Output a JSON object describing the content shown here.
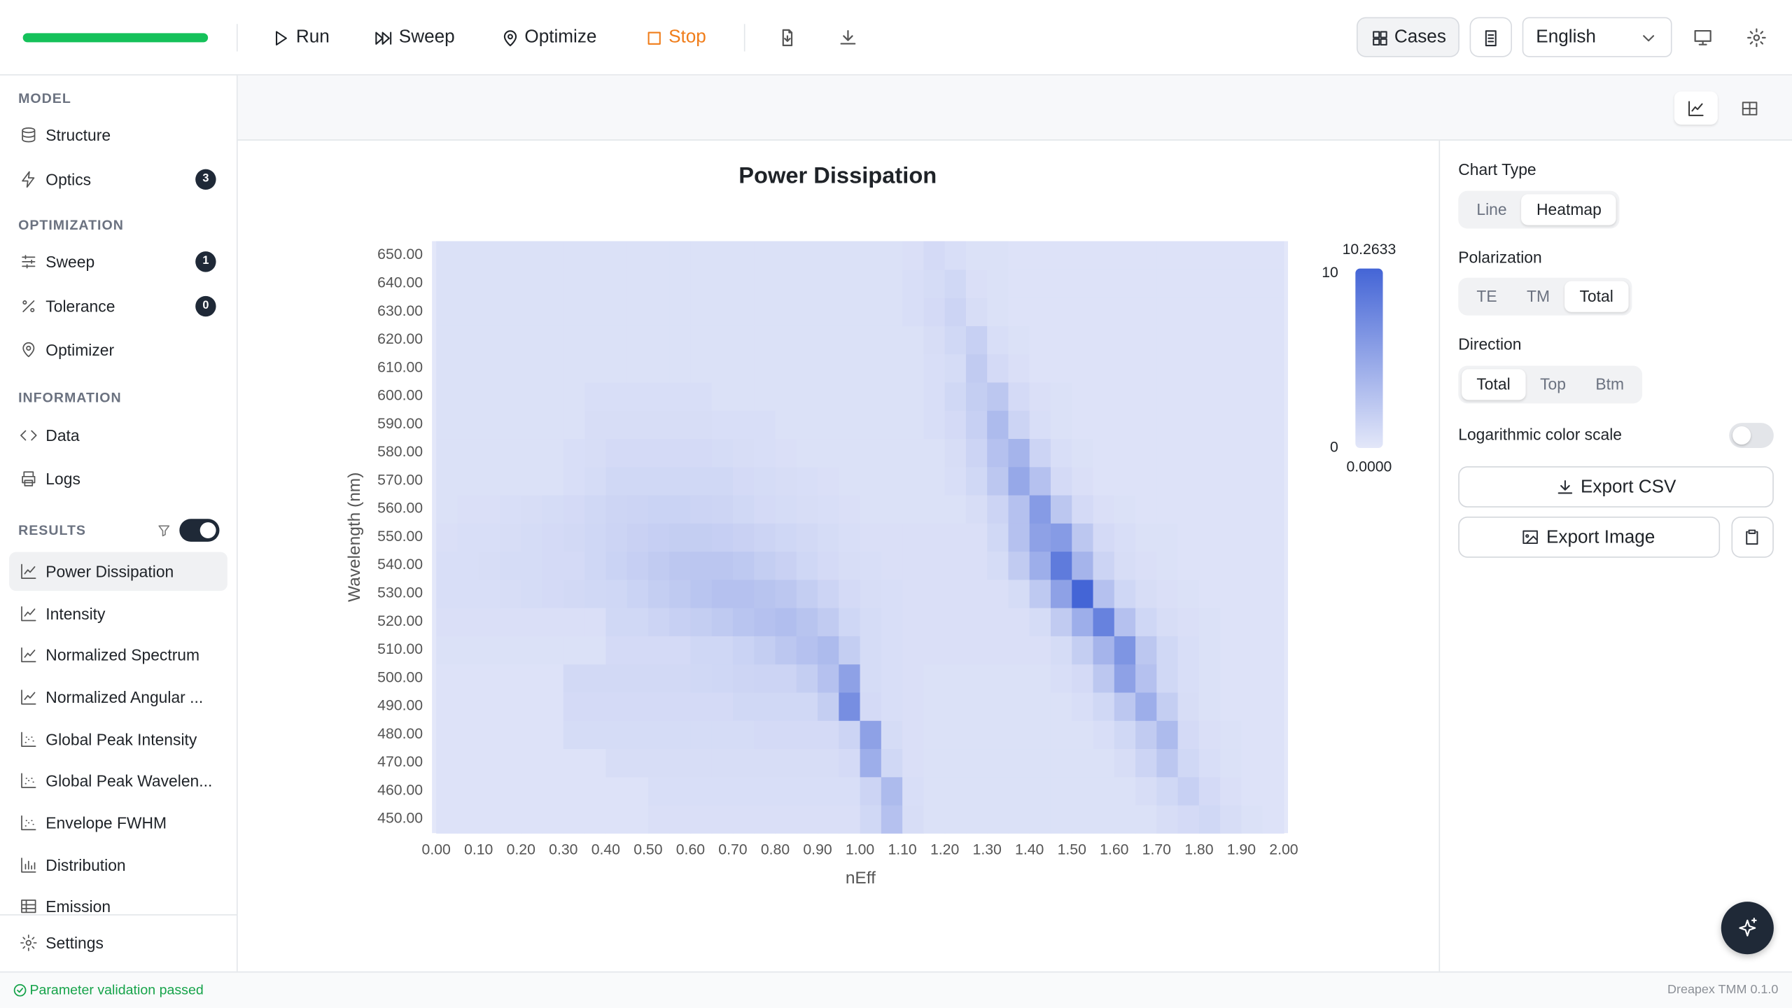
{
  "toolbar": {
    "run": "Run",
    "sweep": "Sweep",
    "optimize": "Optimize",
    "stop": "Stop",
    "cases": "Cases",
    "language": "English"
  },
  "sidebar": {
    "sections": [
      {
        "title": "MODEL",
        "items": [
          {
            "label": "Structure"
          },
          {
            "label": "Optics",
            "badge": 3
          }
        ]
      },
      {
        "title": "OPTIMIZATION",
        "items": [
          {
            "label": "Sweep",
            "badge": 1
          },
          {
            "label": "Tolerance",
            "badge": 0
          },
          {
            "label": "Optimizer"
          }
        ]
      },
      {
        "title": "INFORMATION",
        "items": [
          {
            "label": "Data"
          },
          {
            "label": "Logs"
          }
        ]
      },
      {
        "title": "RESULTS",
        "filter_enabled": true,
        "selected": 0,
        "items": [
          {
            "label": "Power Dissipation"
          },
          {
            "label": "Intensity"
          },
          {
            "label": "Normalized Spectrum"
          },
          {
            "label": "Normalized Angular ..."
          },
          {
            "label": "Global Peak Intensity"
          },
          {
            "label": "Global Peak Wavelen..."
          },
          {
            "label": "Envelope FWHM"
          },
          {
            "label": "Distribution"
          },
          {
            "label": "Emission"
          }
        ]
      }
    ],
    "settings": "Settings"
  },
  "panel": {
    "chart_type": {
      "label": "Chart Type",
      "options": [
        "Line",
        "Heatmap"
      ],
      "selected": 1
    },
    "polarization": {
      "label": "Polarization",
      "options": [
        "TE",
        "TM",
        "Total"
      ],
      "selected": 2
    },
    "direction": {
      "label": "Direction",
      "options": [
        "Total",
        "Top",
        "Btm"
      ],
      "selected": 0
    },
    "log_scale": {
      "label": "Logarithmic color scale",
      "on": false
    },
    "export_csv": "Export CSV",
    "export_image": "Export Image"
  },
  "status": {
    "message": "Parameter validation passed",
    "version": "Dreapex TMM 0.1.0"
  },
  "chart_data": {
    "type": "heatmap",
    "title": "Power Dissipation",
    "xlabel": "nEff",
    "ylabel": "Wavelength (nm)",
    "xlim": [
      -0.01,
      2.01
    ],
    "ylim": [
      445,
      655
    ],
    "xticks": [
      {
        "value": 0,
        "label": "0.00"
      },
      {
        "value": 0.1,
        "label": "0.10"
      },
      {
        "value": 0.2,
        "label": "0.20"
      },
      {
        "value": 0.3,
        "label": "0.30"
      },
      {
        "value": 0.4,
        "label": "0.40"
      },
      {
        "value": 0.5,
        "label": "0.50"
      },
      {
        "value": 0.6,
        "label": "0.60"
      },
      {
        "value": 0.7,
        "label": "0.70"
      },
      {
        "value": 0.8,
        "label": "0.80"
      },
      {
        "value": 0.9,
        "label": "0.90"
      },
      {
        "value": 1,
        "label": "1.00"
      },
      {
        "value": 1.1,
        "label": "1.10"
      },
      {
        "value": 1.2,
        "label": "1.20"
      },
      {
        "value": 1.3,
        "label": "1.30"
      },
      {
        "value": 1.4,
        "label": "1.40"
      },
      {
        "value": 1.5,
        "label": "1.50"
      },
      {
        "value": 1.6,
        "label": "1.60"
      },
      {
        "value": 1.7,
        "label": "1.70"
      },
      {
        "value": 1.8,
        "label": "1.80"
      },
      {
        "value": 1.9,
        "label": "1.90"
      },
      {
        "value": 2,
        "label": "2.00"
      }
    ],
    "yticks": [
      {
        "value": 450,
        "label": "450.00"
      },
      {
        "value": 460,
        "label": "460.00"
      },
      {
        "value": 470,
        "label": "470.00"
      },
      {
        "value": 480,
        "label": "480.00"
      },
      {
        "value": 490,
        "label": "490.00"
      },
      {
        "value": 500,
        "label": "500.00"
      },
      {
        "value": 510,
        "label": "510.00"
      },
      {
        "value": 520,
        "label": "520.00"
      },
      {
        "value": 530,
        "label": "530.00"
      },
      {
        "value": 540,
        "label": "540.00"
      },
      {
        "value": 550,
        "label": "550.00"
      },
      {
        "value": 560,
        "label": "560.00"
      },
      {
        "value": 570,
        "label": "570.00"
      },
      {
        "value": 580,
        "label": "580.00"
      },
      {
        "value": 590,
        "label": "590.00"
      },
      {
        "value": 600,
        "label": "600.00"
      },
      {
        "value": 610,
        "label": "610.00"
      },
      {
        "value": 620,
        "label": "620.00"
      },
      {
        "value": 630,
        "label": "630.00"
      },
      {
        "value": 640,
        "label": "640.00"
      },
      {
        "value": 650,
        "label": "650.00"
      }
    ],
    "xbins": [
      0,
      0.05,
      0.1,
      0.15,
      0.2,
      0.25,
      0.3,
      0.35,
      0.4,
      0.45,
      0.5,
      0.55,
      0.6,
      0.65,
      0.7,
      0.75,
      0.8,
      0.85,
      0.9,
      0.95,
      1,
      1.05,
      1.1,
      1.15,
      1.2,
      1.25,
      1.3,
      1.35,
      1.4,
      1.45,
      1.5,
      1.55,
      1.6,
      1.65,
      1.7,
      1.75,
      1.8,
      1.85,
      1.9,
      1.95,
      2
    ],
    "ybins": [
      445,
      455,
      465,
      475,
      485,
      495,
      505,
      515,
      525,
      535,
      545,
      555,
      565,
      575,
      585,
      595,
      605,
      615,
      625,
      635,
      645,
      655
    ],
    "values": [
      [
        0.4,
        0.4,
        0.4,
        0.4,
        0.4,
        0.4,
        0.4,
        0.4,
        0.4,
        0.4,
        0.6,
        0.6,
        0.6,
        0.6,
        0.6,
        0.6,
        0.6,
        0.6,
        0.6,
        0.6,
        1.2,
        3.0,
        0.8,
        0.5,
        0.5,
        0.5,
        0.5,
        0.5,
        0.5,
        0.5,
        0.5,
        0.5,
        0.5,
        0.5,
        0.8,
        1.0,
        1.2,
        0.8,
        0.5,
        0.4
      ],
      [
        0.4,
        0.4,
        0.4,
        0.4,
        0.4,
        0.4,
        0.4,
        0.4,
        0.4,
        0.4,
        0.7,
        0.7,
        0.7,
        0.7,
        0.7,
        0.7,
        0.7,
        0.7,
        0.7,
        0.7,
        1.5,
        3.5,
        0.7,
        0.5,
        0.5,
        0.5,
        0.5,
        0.5,
        0.5,
        0.5,
        0.5,
        0.5,
        0.5,
        0.8,
        1.2,
        1.8,
        1.0,
        0.6,
        0.4,
        0.4
      ],
      [
        0.4,
        0.4,
        0.4,
        0.4,
        0.4,
        0.4,
        0.4,
        0.4,
        0.8,
        0.8,
        0.8,
        0.8,
        0.8,
        0.8,
        0.8,
        0.8,
        0.8,
        0.8,
        0.8,
        1.0,
        4.5,
        1.2,
        0.6,
        0.5,
        0.5,
        0.5,
        0.5,
        0.5,
        0.5,
        0.5,
        0.5,
        0.5,
        0.8,
        1.5,
        2.5,
        1.2,
        0.7,
        0.5,
        0.4,
        0.4
      ],
      [
        0.4,
        0.4,
        0.4,
        0.4,
        0.4,
        0.4,
        0.9,
        0.9,
        0.9,
        0.9,
        0.9,
        0.9,
        0.9,
        0.9,
        0.9,
        1.0,
        1.0,
        1.0,
        1.0,
        1.5,
        5.5,
        0.9,
        0.6,
        0.5,
        0.5,
        0.5,
        0.5,
        0.5,
        0.5,
        0.5,
        0.5,
        0.7,
        1.2,
        2.2,
        3.5,
        1.0,
        0.6,
        0.5,
        0.4,
        0.4
      ],
      [
        0.4,
        0.4,
        0.4,
        0.4,
        0.4,
        0.4,
        1.0,
        1.0,
        1.0,
        1.0,
        1.0,
        1.0,
        1.0,
        1.0,
        1.2,
        1.2,
        1.2,
        1.2,
        2.0,
        7.0,
        1.0,
        0.7,
        0.6,
        0.5,
        0.5,
        0.5,
        0.5,
        0.5,
        0.5,
        0.5,
        0.7,
        1.2,
        2.5,
        4.5,
        2.0,
        0.8,
        0.5,
        0.4,
        0.4,
        0.4
      ],
      [
        0.4,
        0.4,
        0.4,
        0.4,
        0.4,
        0.4,
        1.1,
        1.1,
        1.1,
        1.1,
        1.1,
        1.1,
        1.2,
        1.3,
        1.4,
        1.5,
        1.5,
        2.0,
        3.0,
        5.5,
        0.9,
        0.7,
        0.6,
        0.5,
        0.5,
        0.5,
        0.5,
        0.5,
        0.5,
        0.7,
        1.0,
        2.5,
        5.5,
        3.0,
        1.2,
        0.7,
        0.5,
        0.4,
        0.4,
        0.4
      ],
      [
        0.5,
        0.5,
        0.5,
        0.5,
        0.5,
        0.5,
        0.5,
        0.5,
        1.0,
        1.0,
        1.0,
        1.0,
        1.3,
        1.3,
        1.6,
        2.0,
        2.5,
        3.0,
        3.5,
        2.0,
        0.9,
        0.7,
        0.6,
        0.6,
        0.6,
        0.6,
        0.6,
        0.6,
        0.6,
        0.9,
        2.0,
        4.0,
        6.5,
        2.5,
        1.2,
        0.7,
        0.5,
        0.4,
        0.4,
        0.4
      ],
      [
        0.6,
        0.6,
        0.6,
        0.6,
        0.6,
        0.6,
        0.6,
        0.6,
        1.2,
        1.2,
        1.5,
        1.8,
        2.0,
        2.3,
        2.7,
        3.0,
        3.2,
        2.8,
        2.2,
        1.3,
        0.9,
        0.7,
        0.6,
        0.6,
        0.6,
        0.6,
        0.6,
        0.6,
        0.9,
        2.2,
        4.5,
        8.0,
        3.0,
        1.3,
        0.8,
        0.6,
        0.5,
        0.4,
        0.4,
        0.4
      ],
      [
        0.7,
        0.7,
        0.7,
        0.8,
        0.9,
        1.0,
        1.1,
        1.2,
        1.3,
        1.6,
        2.0,
        2.3,
        2.7,
        3.0,
        3.0,
        2.8,
        2.5,
        2.0,
        1.5,
        1.0,
        0.8,
        0.7,
        0.6,
        0.6,
        0.6,
        0.6,
        0.6,
        0.9,
        2.4,
        5.5,
        10.2633,
        3.0,
        1.3,
        0.8,
        0.6,
        0.5,
        0.4,
        0.4,
        0.4,
        0.4
      ],
      [
        0.7,
        0.7,
        0.8,
        0.9,
        0.9,
        1.0,
        1.0,
        1.3,
        1.6,
        1.9,
        2.2,
        2.5,
        2.6,
        2.6,
        2.4,
        2.0,
        1.7,
        1.3,
        1.0,
        0.8,
        0.7,
        0.6,
        0.6,
        0.6,
        0.6,
        0.6,
        0.9,
        2.2,
        4.5,
        8.5,
        4.0,
        1.5,
        0.8,
        0.6,
        0.5,
        0.4,
        0.4,
        0.4,
        0.4,
        0.4
      ],
      [
        0.6,
        0.7,
        0.7,
        0.8,
        0.9,
        1.0,
        1.1,
        1.3,
        1.5,
        1.7,
        1.9,
        2.0,
        2.0,
        1.9,
        1.7,
        1.5,
        1.3,
        1.1,
        0.9,
        0.7,
        0.6,
        0.6,
        0.6,
        0.6,
        0.6,
        0.6,
        1.2,
        3.0,
        5.5,
        6.0,
        2.5,
        1.0,
        0.7,
        0.5,
        0.5,
        0.4,
        0.4,
        0.4,
        0.4,
        0.4
      ],
      [
        0.5,
        0.6,
        0.6,
        0.7,
        0.8,
        0.9,
        1.0,
        1.2,
        1.4,
        1.5,
        1.6,
        1.6,
        1.5,
        1.4,
        1.2,
        1.0,
        0.9,
        0.8,
        0.7,
        0.6,
        0.5,
        0.5,
        0.5,
        0.5,
        0.5,
        0.8,
        1.5,
        3.0,
        6.0,
        2.5,
        1.0,
        0.6,
        0.5,
        0.4,
        0.4,
        0.4,
        0.4,
        0.4,
        0.4,
        0.4
      ],
      [
        0.5,
        0.5,
        0.5,
        0.5,
        0.5,
        0.5,
        0.7,
        0.9,
        1.2,
        1.2,
        1.2,
        1.2,
        1.2,
        1.2,
        1.0,
        0.9,
        0.8,
        0.7,
        0.6,
        0.5,
        0.5,
        0.5,
        0.5,
        0.5,
        0.7,
        1.2,
        2.5,
        5.0,
        3.0,
        1.0,
        0.6,
        0.4,
        0.4,
        0.4,
        0.4,
        0.4,
        0.4,
        0.4,
        0.4,
        0.4
      ],
      [
        0.5,
        0.5,
        0.5,
        0.5,
        0.5,
        0.5,
        0.7,
        0.8,
        1.0,
        1.0,
        1.0,
        1.0,
        1.0,
        0.9,
        0.8,
        0.7,
        0.6,
        0.5,
        0.5,
        0.5,
        0.5,
        0.5,
        0.5,
        0.5,
        0.8,
        1.5,
        3.0,
        4.0,
        1.5,
        0.7,
        0.5,
        0.4,
        0.4,
        0.4,
        0.4,
        0.4,
        0.4,
        0.4,
        0.4,
        0.4
      ],
      [
        0.5,
        0.5,
        0.5,
        0.5,
        0.5,
        0.5,
        0.5,
        0.8,
        0.8,
        0.8,
        0.8,
        0.8,
        0.8,
        0.7,
        0.7,
        0.7,
        0.5,
        0.5,
        0.5,
        0.5,
        0.5,
        0.5,
        0.5,
        0.7,
        1.0,
        1.8,
        3.5,
        1.5,
        0.7,
        0.5,
        0.4,
        0.4,
        0.4,
        0.4,
        0.4,
        0.4,
        0.4,
        0.4,
        0.4,
        0.4
      ],
      [
        0.5,
        0.5,
        0.5,
        0.5,
        0.5,
        0.5,
        0.5,
        0.7,
        0.7,
        0.7,
        0.7,
        0.7,
        0.7,
        0.5,
        0.5,
        0.5,
        0.5,
        0.5,
        0.5,
        0.5,
        0.5,
        0.5,
        0.5,
        0.7,
        1.2,
        2.0,
        2.5,
        1.0,
        0.6,
        0.5,
        0.4,
        0.4,
        0.4,
        0.4,
        0.4,
        0.4,
        0.4,
        0.4,
        0.4,
        0.4
      ],
      [
        0.5,
        0.5,
        0.5,
        0.5,
        0.5,
        0.5,
        0.5,
        0.5,
        0.5,
        0.5,
        0.5,
        0.5,
        0.5,
        0.5,
        0.5,
        0.5,
        0.5,
        0.5,
        0.5,
        0.5,
        0.5,
        0.5,
        0.5,
        0.7,
        0.9,
        2.2,
        1.0,
        0.6,
        0.4,
        0.4,
        0.4,
        0.4,
        0.4,
        0.4,
        0.4,
        0.4,
        0.4,
        0.4,
        0.4,
        0.4
      ],
      [
        0.5,
        0.5,
        0.5,
        0.5,
        0.5,
        0.5,
        0.5,
        0.5,
        0.5,
        0.5,
        0.5,
        0.5,
        0.5,
        0.5,
        0.5,
        0.5,
        0.5,
        0.5,
        0.5,
        0.5,
        0.5,
        0.5,
        0.5,
        0.8,
        1.2,
        1.8,
        0.7,
        0.5,
        0.4,
        0.4,
        0.4,
        0.4,
        0.4,
        0.4,
        0.4,
        0.4,
        0.4,
        0.4,
        0.4,
        0.4
      ],
      [
        0.5,
        0.5,
        0.5,
        0.5,
        0.5,
        0.5,
        0.5,
        0.5,
        0.5,
        0.5,
        0.5,
        0.5,
        0.5,
        0.5,
        0.5,
        0.5,
        0.5,
        0.5,
        0.5,
        0.5,
        0.5,
        0.5,
        0.7,
        1.0,
        1.5,
        0.8,
        0.5,
        0.4,
        0.4,
        0.4,
        0.4,
        0.4,
        0.4,
        0.4,
        0.4,
        0.4,
        0.4,
        0.4,
        0.4,
        0.4
      ],
      [
        0.5,
        0.5,
        0.5,
        0.5,
        0.5,
        0.5,
        0.5,
        0.5,
        0.5,
        0.5,
        0.5,
        0.5,
        0.5,
        0.5,
        0.5,
        0.5,
        0.5,
        0.5,
        0.5,
        0.5,
        0.5,
        0.5,
        0.7,
        0.9,
        1.2,
        0.6,
        0.5,
        0.4,
        0.4,
        0.4,
        0.4,
        0.4,
        0.4,
        0.4,
        0.4,
        0.4,
        0.4,
        0.4,
        0.4,
        0.4
      ],
      [
        0.5,
        0.5,
        0.5,
        0.5,
        0.5,
        0.5,
        0.5,
        0.5,
        0.5,
        0.5,
        0.5,
        0.5,
        0.5,
        0.5,
        0.5,
        0.5,
        0.5,
        0.5,
        0.5,
        0.5,
        0.5,
        0.5,
        0.6,
        1.0,
        0.7,
        0.5,
        0.5,
        0.4,
        0.4,
        0.4,
        0.4,
        0.4,
        0.4,
        0.4,
        0.4,
        0.4,
        0.4,
        0.4,
        0.4,
        0.4
      ]
    ],
    "colorbar": {
      "min": {
        "value": 0,
        "label": "0.0000"
      },
      "max": {
        "value": 10.2633,
        "label": "10.2633"
      },
      "ticks": [
        0,
        10
      ],
      "colors": [
        "#e3e7f9",
        "#4465d6"
      ]
    }
  }
}
